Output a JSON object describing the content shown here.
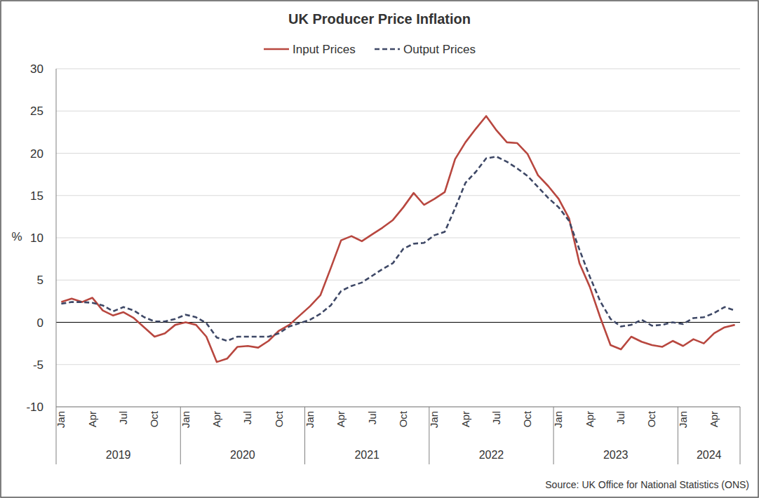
{
  "chart_data": {
    "type": "line",
    "title": "UK Producer Price Inflation",
    "y_label": "%",
    "source": "Source: UK Office for National Statistics (ONS)",
    "categories": [
      "Jan",
      null,
      null,
      "Apr",
      null,
      null,
      "Jul",
      null,
      null,
      "Oct",
      null,
      null,
      "Jan",
      null,
      null,
      "Apr",
      null,
      null,
      "Jul",
      null,
      null,
      "Oct",
      null,
      null,
      "Jan",
      null,
      null,
      "Apr",
      null,
      null,
      "Jul",
      null,
      null,
      "Oct",
      null,
      null,
      "Jan",
      null,
      null,
      "Apr",
      null,
      null,
      "Jul",
      null,
      null,
      "Oct",
      null,
      null,
      "Jan",
      null,
      null,
      "Apr",
      null,
      null,
      "Jul",
      null,
      null,
      "Oct",
      null,
      null,
      "Jan",
      null,
      null,
      "Apr",
      null,
      null
    ],
    "year_labels": [
      "2019",
      "2020",
      "2021",
      "2022",
      "2023",
      "2024"
    ],
    "year_lengths": [
      12,
      12,
      12,
      12,
      12,
      6
    ],
    "series": [
      {
        "name": "Input Prices",
        "color": "#b8473f",
        "line_style": "solid",
        "values": [
          2.4,
          2.8,
          2.4,
          2.9,
          1.4,
          0.8,
          1.2,
          0.5,
          -0.6,
          -1.7,
          -1.3,
          -0.3,
          0.0,
          -0.3,
          -1.7,
          -4.7,
          -4.3,
          -2.9,
          -2.8,
          -3.0,
          -2.2,
          -1.0,
          -0.3,
          0.8,
          1.9,
          3.2,
          6.4,
          9.7,
          10.2,
          9.6,
          10.4,
          11.2,
          12.1,
          13.6,
          15.3,
          13.9,
          14.6,
          15.4,
          19.3,
          21.3,
          22.9,
          24.4,
          22.7,
          21.3,
          21.2,
          19.9,
          17.4,
          16.1,
          14.6,
          12.3,
          7.0,
          4.2,
          0.6,
          -2.7,
          -3.2,
          -1.7,
          -2.3,
          -2.7,
          -2.9,
          -2.2,
          -2.8,
          -2.0,
          -2.5,
          -1.3,
          -0.6,
          -0.3
        ]
      },
      {
        "name": "Output Prices",
        "color": "#3e4866",
        "line_style": "dashed",
        "values": [
          2.2,
          2.4,
          2.4,
          2.3,
          2.0,
          1.3,
          1.8,
          1.4,
          0.6,
          0.1,
          0.1,
          0.4,
          0.9,
          0.6,
          -0.1,
          -1.8,
          -2.2,
          -1.7,
          -1.7,
          -1.7,
          -1.7,
          -1.3,
          -0.5,
          -0.1,
          0.3,
          1.0,
          2.0,
          3.7,
          4.3,
          4.7,
          5.5,
          6.3,
          7.0,
          8.7,
          9.3,
          9.4,
          10.3,
          10.7,
          13.5,
          16.5,
          17.8,
          19.4,
          19.6,
          19.0,
          18.2,
          17.3,
          16.0,
          14.7,
          13.6,
          12.0,
          8.6,
          5.4,
          2.5,
          0.4,
          -0.5,
          -0.3,
          0.3,
          -0.4,
          -0.3,
          0.0,
          -0.2,
          0.5,
          0.6,
          1.1,
          1.8,
          1.4
        ]
      }
    ],
    "ylim": [
      -10,
      30
    ],
    "yticks": [
      -10,
      -5,
      0,
      5,
      10,
      15,
      20,
      25,
      30
    ],
    "grid": true,
    "legend": "top"
  }
}
